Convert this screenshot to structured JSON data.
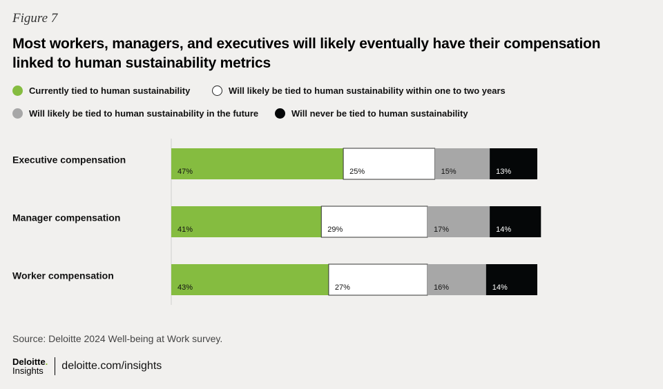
{
  "figure_label": "Figure 7",
  "title": "Most workers, managers, and executives will likely eventually have their compensation linked to human sustainability metrics",
  "legend": [
    {
      "label": "Currently tied to human sustainability",
      "color": "#85bc40"
    },
    {
      "label": "Will likely be tied to human sustainability within one to two years",
      "color": "#ffffff"
    },
    {
      "label": "Will likely be tied to human sustainability in the future",
      "color": "#a7a7a7"
    },
    {
      "label": "Will never be tied to human sustainability",
      "color": "#050708"
    }
  ],
  "chart_data": {
    "type": "bar",
    "orientation": "horizontal",
    "stacked": true,
    "unit": "%",
    "categories": [
      "Executive compensation",
      "Manager compensation",
      "Worker compensation"
    ],
    "series": [
      {
        "name": "Currently tied to human sustainability",
        "color": "#85bc40",
        "values": [
          47,
          41,
          43
        ]
      },
      {
        "name": "Will likely be tied to human sustainability within one to two years",
        "color": "#ffffff",
        "values": [
          25,
          29,
          27
        ]
      },
      {
        "name": "Will likely be tied to human sustainability in the future",
        "color": "#a7a7a7",
        "values": [
          15,
          17,
          16
        ]
      },
      {
        "name": "Will never be tied to human sustainability",
        "color": "#050708",
        "values": [
          13,
          14,
          14
        ]
      }
    ],
    "xlim": [
      0,
      100
    ],
    "grid": false
  },
  "source": "Source: Deloitte 2024 Well-being at Work survey.",
  "footer": {
    "brand_top": "Deloitte",
    "brand_dot": ".",
    "brand_bottom": "Insights",
    "url": "deloitte.com/insights"
  }
}
